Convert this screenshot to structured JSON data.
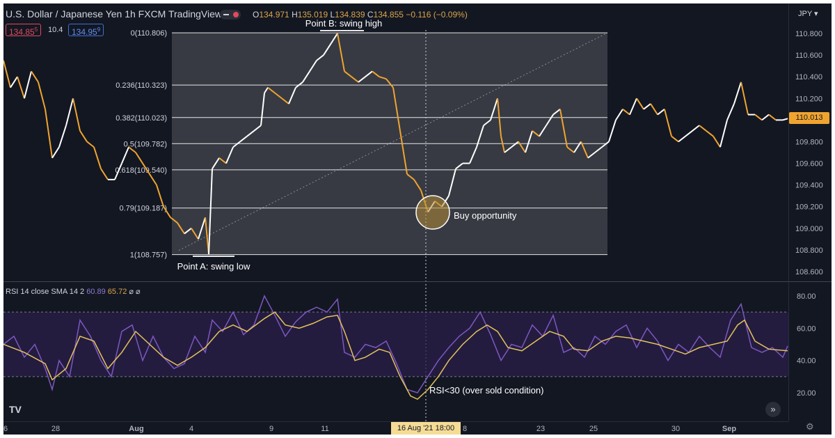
{
  "header": {
    "symbol_title": "U.S. Dollar / Japanese Yen  1h  FXCM  TradingView",
    "ohlc": {
      "o_label": "O",
      "o": "134.971",
      "h_label": "H",
      "h": "135.019",
      "l_label": "L",
      "l": "134.839",
      "c_label": "C",
      "c": "134.855",
      "change": "−0.116 (−0.09%)"
    },
    "sell_price": "134.85",
    "sell_sup": "5",
    "spread": "10.4",
    "buy_price": "134.95",
    "buy_sup": "9",
    "currency": "JPY ▾"
  },
  "fib": {
    "levels": [
      {
        "label": "0(110.806)",
        "value": 110.806
      },
      {
        "label": "0.236(110.323)",
        "value": 110.323
      },
      {
        "label": "0.382(110.023)",
        "value": 110.023
      },
      {
        "label": "0.5(109.782)",
        "value": 109.782
      },
      {
        "label": "0.618(109.540)",
        "value": 109.54
      },
      {
        "label": "0.79(109.187)",
        "value": 109.187
      },
      {
        "label": "1(108.757)",
        "value": 108.757
      }
    ]
  },
  "annotations": {
    "point_b": "Point B: swing high",
    "point_a": "Point A: swing low",
    "buy": "Buy opportunity",
    "rsi_note": "RSI<30 (over sold condition)"
  },
  "price_axis": [
    "110.800",
    "110.600",
    "110.400",
    "110.200",
    "110.000",
    "109.800",
    "109.600",
    "109.400",
    "109.200",
    "109.000",
    "108.800",
    "108.600"
  ],
  "current_price": "110.013",
  "rsi": {
    "legend_name": "RSI 14 close SMA 14 2",
    "rsi_value": "60.89",
    "sma_value": "65.72",
    "legend_icons": "⌀ ⌀",
    "axis": [
      "80.00",
      "60.00",
      "40.00",
      "20.00"
    ]
  },
  "time_axis": [
    "28",
    "Aug",
    "4",
    "9",
    "11",
    "23",
    "25",
    "30",
    "Sep"
  ],
  "time_axis_edge": [
    "6",
    "8"
  ],
  "crosshair_date": "16 Aug '21   18:00",
  "tv_logo": "TV",
  "nav_arrow": "»",
  "gear": "⚙",
  "colors": {
    "background": "#131722",
    "candle_up": "#ffffff",
    "candle_down": "#f0a430",
    "rsi_line": "#7e57c2",
    "rsi_sma": "#e6c35c",
    "fib_fill": "#3b3e45"
  },
  "chart_data": [
    {
      "type": "line",
      "title": "U.S. Dollar / Japanese Yen 1h",
      "ylim": [
        108.6,
        110.9
      ],
      "price_points": [
        [
          0,
          110.55
        ],
        [
          10,
          110.3
        ],
        [
          20,
          110.4
        ],
        [
          30,
          110.2
        ],
        [
          40,
          110.45
        ],
        [
          50,
          110.35
        ],
        [
          60,
          110.1
        ],
        [
          70,
          109.65
        ],
        [
          80,
          109.75
        ],
        [
          90,
          109.95
        ],
        [
          100,
          110.2
        ],
        [
          110,
          109.9
        ],
        [
          120,
          109.8
        ],
        [
          130,
          109.75
        ],
        [
          140,
          109.55
        ],
        [
          150,
          109.45
        ],
        [
          160,
          109.45
        ],
        [
          170,
          109.6
        ],
        [
          180,
          109.75
        ],
        [
          190,
          109.7
        ],
        [
          200,
          109.6
        ],
        [
          210,
          109.5
        ],
        [
          220,
          109.4
        ],
        [
          230,
          109.2
        ],
        [
          240,
          109.1
        ],
        [
          250,
          109.05
        ],
        [
          260,
          108.95
        ],
        [
          270,
          109.0
        ],
        [
          280,
          108.9
        ],
        [
          290,
          109.1
        ],
        [
          295,
          108.76
        ],
        [
          300,
          109.55
        ],
        [
          310,
          109.65
        ],
        [
          320,
          109.6
        ],
        [
          330,
          109.75
        ],
        [
          340,
          109.8
        ],
        [
          350,
          109.85
        ],
        [
          360,
          109.9
        ],
        [
          370,
          109.95
        ],
        [
          375,
          110.25
        ],
        [
          380,
          110.3
        ],
        [
          390,
          110.25
        ],
        [
          400,
          110.2
        ],
        [
          410,
          110.15
        ],
        [
          420,
          110.3
        ],
        [
          430,
          110.35
        ],
        [
          440,
          110.45
        ],
        [
          450,
          110.55
        ],
        [
          460,
          110.6
        ],
        [
          470,
          110.7
        ],
        [
          480,
          110.8
        ],
        [
          490,
          110.45
        ],
        [
          500,
          110.4
        ],
        [
          510,
          110.35
        ],
        [
          520,
          110.4
        ],
        [
          530,
          110.45
        ],
        [
          540,
          110.4
        ],
        [
          550,
          110.38
        ],
        [
          560,
          110.3
        ],
        [
          570,
          109.9
        ],
        [
          580,
          109.5
        ],
        [
          590,
          109.45
        ],
        [
          600,
          109.35
        ],
        [
          610,
          109.15
        ],
        [
          620,
          109.25
        ],
        [
          630,
          109.2
        ],
        [
          640,
          109.3
        ],
        [
          650,
          109.55
        ],
        [
          660,
          109.6
        ],
        [
          670,
          109.6
        ],
        [
          680,
          109.75
        ],
        [
          690,
          109.95
        ],
        [
          700,
          110.0
        ],
        [
          710,
          110.2
        ],
        [
          715,
          109.85
        ],
        [
          720,
          109.7
        ],
        [
          730,
          109.75
        ],
        [
          740,
          109.8
        ],
        [
          750,
          109.7
        ],
        [
          760,
          109.9
        ],
        [
          770,
          109.85
        ],
        [
          780,
          109.95
        ],
        [
          790,
          110.05
        ],
        [
          800,
          110.1
        ],
        [
          810,
          109.75
        ],
        [
          820,
          109.7
        ],
        [
          830,
          109.8
        ],
        [
          840,
          109.65
        ],
        [
          850,
          109.7
        ],
        [
          860,
          109.75
        ],
        [
          870,
          109.8
        ],
        [
          880,
          110.0
        ],
        [
          890,
          110.1
        ],
        [
          900,
          110.05
        ],
        [
          910,
          110.2
        ],
        [
          920,
          110.1
        ],
        [
          930,
          110.15
        ],
        [
          940,
          110.05
        ],
        [
          950,
          110.1
        ],
        [
          960,
          109.85
        ],
        [
          970,
          109.8
        ],
        [
          980,
          109.85
        ],
        [
          990,
          109.9
        ],
        [
          1000,
          109.95
        ],
        [
          1010,
          109.9
        ],
        [
          1020,
          109.85
        ],
        [
          1030,
          109.75
        ],
        [
          1040,
          110.0
        ],
        [
          1050,
          110.15
        ],
        [
          1060,
          110.35
        ],
        [
          1070,
          110.05
        ],
        [
          1080,
          110.05
        ],
        [
          1090,
          110.0
        ],
        [
          1100,
          110.05
        ],
        [
          1110,
          110.0
        ],
        [
          1120,
          110.0
        ],
        [
          1127,
          110.013
        ]
      ]
    },
    {
      "type": "line",
      "title": "RSI 14 close SMA 14 2",
      "ylim": [
        0,
        90
      ],
      "series": [
        {
          "name": "RSI",
          "values": [
            [
              0,
              50
            ],
            [
              15,
              55
            ],
            [
              30,
              42
            ],
            [
              45,
              50
            ],
            [
              60,
              35
            ],
            [
              70,
              22
            ],
            [
              80,
              40
            ],
            [
              95,
              30
            ],
            [
              110,
              65
            ],
            [
              125,
              55
            ],
            [
              140,
              40
            ],
            [
              155,
              30
            ],
            [
              170,
              58
            ],
            [
              185,
              62
            ],
            [
              200,
              40
            ],
            [
              215,
              55
            ],
            [
              230,
              42
            ],
            [
              245,
              35
            ],
            [
              260,
              38
            ],
            [
              275,
              55
            ],
            [
              290,
              45
            ],
            [
              300,
              65
            ],
            [
              315,
              58
            ],
            [
              330,
              70
            ],
            [
              345,
              56
            ],
            [
              360,
              62
            ],
            [
              375,
              80
            ],
            [
              390,
              68
            ],
            [
              405,
              55
            ],
            [
              420,
              64
            ],
            [
              435,
              70
            ],
            [
              450,
              73
            ],
            [
              465,
              70
            ],
            [
              480,
              78
            ],
            [
              490,
              45
            ],
            [
              505,
              42
            ],
            [
              520,
              50
            ],
            [
              535,
              48
            ],
            [
              550,
              52
            ],
            [
              565,
              38
            ],
            [
              580,
              22
            ],
            [
              595,
              20
            ],
            [
              610,
              30
            ],
            [
              625,
              40
            ],
            [
              640,
              48
            ],
            [
              655,
              55
            ],
            [
              670,
              60
            ],
            [
              685,
              70
            ],
            [
              700,
              56
            ],
            [
              715,
              40
            ],
            [
              730,
              50
            ],
            [
              745,
              48
            ],
            [
              760,
              62
            ],
            [
              775,
              55
            ],
            [
              790,
              68
            ],
            [
              805,
              45
            ],
            [
              820,
              48
            ],
            [
              835,
              42
            ],
            [
              850,
              55
            ],
            [
              865,
              50
            ],
            [
              880,
              58
            ],
            [
              895,
              62
            ],
            [
              910,
              48
            ],
            [
              925,
              60
            ],
            [
              940,
              52
            ],
            [
              955,
              40
            ],
            [
              970,
              50
            ],
            [
              985,
              45
            ],
            [
              1000,
              55
            ],
            [
              1015,
              48
            ],
            [
              1030,
              42
            ],
            [
              1045,
              65
            ],
            [
              1060,
              75
            ],
            [
              1075,
              48
            ],
            [
              1090,
              45
            ],
            [
              1105,
              48
            ],
            [
              1120,
              42
            ],
            [
              1127,
              49
            ]
          ]
        },
        {
          "name": "SMA",
          "values": [
            [
              0,
              50
            ],
            [
              30,
              45
            ],
            [
              60,
              38
            ],
            [
              70,
              28
            ],
            [
              90,
              35
            ],
            [
              110,
              55
            ],
            [
              130,
              52
            ],
            [
              150,
              35
            ],
            [
              170,
              45
            ],
            [
              190,
              58
            ],
            [
              210,
              50
            ],
            [
              230,
              42
            ],
            [
              250,
              37
            ],
            [
              270,
              42
            ],
            [
              290,
              48
            ],
            [
              310,
              58
            ],
            [
              330,
              62
            ],
            [
              350,
              58
            ],
            [
              375,
              66
            ],
            [
              390,
              70
            ],
            [
              405,
              62
            ],
            [
              425,
              60
            ],
            [
              445,
              63
            ],
            [
              465,
              67
            ],
            [
              480,
              68
            ],
            [
              490,
              58
            ],
            [
              505,
              40
            ],
            [
              520,
              42
            ],
            [
              540,
              47
            ],
            [
              555,
              45
            ],
            [
              570,
              30
            ],
            [
              585,
              18
            ],
            [
              595,
              16
            ],
            [
              610,
              22
            ],
            [
              625,
              30
            ],
            [
              640,
              40
            ],
            [
              660,
              50
            ],
            [
              680,
              58
            ],
            [
              695,
              62
            ],
            [
              710,
              58
            ],
            [
              725,
              48
            ],
            [
              745,
              46
            ],
            [
              765,
              52
            ],
            [
              785,
              58
            ],
            [
              805,
              55
            ],
            [
              820,
              47
            ],
            [
              840,
              46
            ],
            [
              860,
              52
            ],
            [
              880,
              55
            ],
            [
              900,
              54
            ],
            [
              920,
              52
            ],
            [
              940,
              50
            ],
            [
              960,
              47
            ],
            [
              980,
              44
            ],
            [
              1000,
              48
            ],
            [
              1020,
              50
            ],
            [
              1040,
              52
            ],
            [
              1055,
              62
            ],
            [
              1065,
              65
            ],
            [
              1080,
              52
            ],
            [
              1100,
              47
            ],
            [
              1127,
              46
            ]
          ]
        }
      ]
    }
  ]
}
